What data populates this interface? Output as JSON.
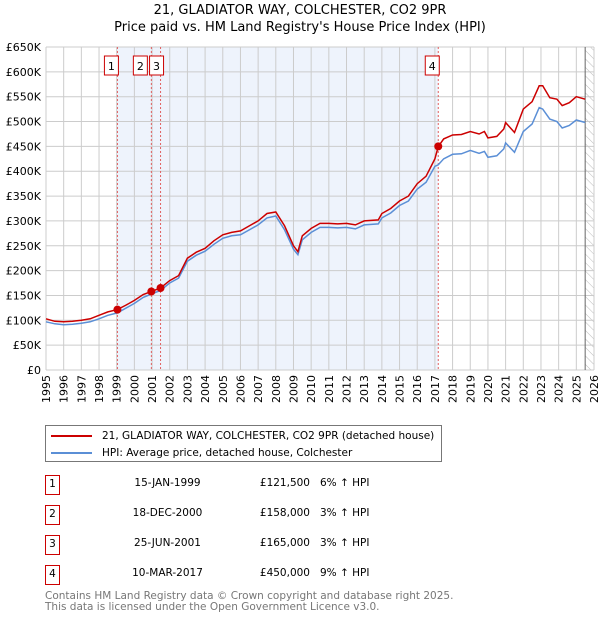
{
  "chart_data": {
    "type": "line",
    "title": "21, GLADIATOR WAY, COLCHESTER, CO2 9PR",
    "subtitle": "Price paid vs. HM Land Registry's House Price Index (HPI)",
    "xlim": [
      1995,
      2026
    ],
    "ylim": [
      0,
      650000
    ],
    "grid": true,
    "x_ticks": [
      "1995",
      "1996",
      "1997",
      "1998",
      "1999",
      "2000",
      "2001",
      "2002",
      "2003",
      "2004",
      "2005",
      "2006",
      "2007",
      "2008",
      "2009",
      "2010",
      "2011",
      "2012",
      "2013",
      "2014",
      "2015",
      "2016",
      "2017",
      "2018",
      "2019",
      "2020",
      "2021",
      "2022",
      "2023",
      "2024",
      "2025",
      "2026"
    ],
    "y_ticks": [
      {
        "v": 0,
        "label": "£0"
      },
      {
        "v": 50000,
        "label": "£50K"
      },
      {
        "v": 100000,
        "label": "£100K"
      },
      {
        "v": 150000,
        "label": "£150K"
      },
      {
        "v": 200000,
        "label": "£200K"
      },
      {
        "v": 250000,
        "label": "£250K"
      },
      {
        "v": 300000,
        "label": "£300K"
      },
      {
        "v": 350000,
        "label": "£350K"
      },
      {
        "v": 400000,
        "label": "£400K"
      },
      {
        "v": 450000,
        "label": "£450K"
      },
      {
        "v": 500000,
        "label": "£500K"
      },
      {
        "v": 550000,
        "label": "£550K"
      },
      {
        "v": 600000,
        "label": "£600K"
      },
      {
        "v": 650000,
        "label": "£650K"
      }
    ],
    "shaded_range": [
      1999.04,
      2017.19
    ],
    "hatched_from": 2025.5,
    "series": [
      {
        "name": "21, GLADIATOR WAY, COLCHESTER, CO2 9PR (detached house)",
        "color": "#cc0000",
        "x": [
          1995,
          1995.5,
          1996,
          1996.5,
          1997,
          1997.5,
          1998,
          1998.5,
          1999.04,
          1999.5,
          2000,
          2000.5,
          2000.96,
          2001.48,
          2002,
          2002.5,
          2003,
          2003.5,
          2004,
          2004.5,
          2005,
          2005.5,
          2006,
          2006.5,
          2007,
          2007.5,
          2008,
          2008.5,
          2009,
          2009.25,
          2009.5,
          2010,
          2010.5,
          2011,
          2011.5,
          2012,
          2012.5,
          2013,
          2013.8,
          2014,
          2014.5,
          2015,
          2015.5,
          2016,
          2016.5,
          2017,
          2017.19,
          2017.5,
          2018,
          2018.5,
          2019,
          2019.5,
          2019.8,
          2020,
          2020.5,
          2020.9,
          2021,
          2021.5,
          2022,
          2022.5,
          2022.9,
          2023.1,
          2023.5,
          2023.9,
          2024.2,
          2024.6,
          2025,
          2025.5
        ],
        "y": [
          103000,
          98000,
          97000,
          98000,
          100000,
          103000,
          110000,
          117000,
          121500,
          130000,
          140000,
          152000,
          158000,
          165000,
          180000,
          190000,
          225000,
          237000,
          245000,
          260000,
          272000,
          277000,
          280000,
          290000,
          300000,
          315000,
          318000,
          290000,
          250000,
          238000,
          270000,
          285000,
          295000,
          295000,
          294000,
          295000,
          292000,
          300000,
          302000,
          315000,
          325000,
          340000,
          350000,
          375000,
          390000,
          425000,
          450000,
          465000,
          473000,
          474000,
          480000,
          475000,
          480000,
          467000,
          470000,
          485000,
          498000,
          478000,
          525000,
          540000,
          572000,
          572000,
          548000,
          545000,
          532000,
          538000,
          550000,
          545000
        ]
      },
      {
        "name": "HPI: Average price, detached house, Colchester",
        "color": "#5b8fd6",
        "x": [
          1995,
          1995.5,
          1996,
          1996.5,
          1997,
          1997.5,
          1998,
          1998.5,
          1999.04,
          1999.5,
          2000,
          2000.5,
          2000.96,
          2001.48,
          2002,
          2002.5,
          2003,
          2003.5,
          2004,
          2004.5,
          2005,
          2005.5,
          2006,
          2006.5,
          2007,
          2007.5,
          2008,
          2008.5,
          2009,
          2009.25,
          2009.5,
          2010,
          2010.5,
          2011,
          2011.5,
          2012,
          2012.5,
          2013,
          2013.8,
          2014,
          2014.5,
          2015,
          2015.5,
          2016,
          2016.5,
          2017,
          2017.19,
          2017.5,
          2018,
          2018.5,
          2019,
          2019.5,
          2019.8,
          2020,
          2020.5,
          2020.9,
          2021,
          2021.5,
          2022,
          2022.5,
          2022.9,
          2023.1,
          2023.5,
          2023.9,
          2024.2,
          2024.6,
          2025,
          2025.5
        ],
        "y": [
          97000,
          93000,
          91000,
          92000,
          94000,
          97000,
          103000,
          110000,
          115000,
          124000,
          134000,
          146000,
          153000,
          160000,
          175000,
          185000,
          219000,
          231000,
          239000,
          253000,
          265000,
          270000,
          272000,
          282000,
          292000,
          306000,
          310000,
          282000,
          243000,
          232000,
          262000,
          277000,
          287000,
          287000,
          286000,
          287000,
          284000,
          292000,
          294000,
          306000,
          316000,
          331000,
          340000,
          364000,
          378000,
          410000,
          413000,
          425000,
          434000,
          435000,
          442000,
          436000,
          440000,
          428000,
          431000,
          445000,
          457000,
          438000,
          480000,
          495000,
          528000,
          525000,
          505000,
          500000,
          487000,
          492000,
          503000,
          498000
        ]
      }
    ],
    "sales": [
      {
        "n": "1",
        "x": 1999.04,
        "y": 121500
      },
      {
        "n": "2",
        "x": 2000.96,
        "y": 158000
      },
      {
        "n": "3",
        "x": 2001.48,
        "y": 165000
      },
      {
        "n": "4",
        "x": 2017.19,
        "y": 450000
      }
    ]
  },
  "legend": {
    "red": "21, GLADIATOR WAY, COLCHESTER, CO2 9PR (detached house)",
    "blue": "HPI: Average price, detached house, Colchester"
  },
  "transactions": [
    {
      "n": "1",
      "date": "15-JAN-1999",
      "price": "£121,500",
      "hpi": "6% ↑ HPI"
    },
    {
      "n": "2",
      "date": "18-DEC-2000",
      "price": "£158,000",
      "hpi": "3% ↑ HPI"
    },
    {
      "n": "3",
      "date": "25-JUN-2001",
      "price": "£165,000",
      "hpi": "3% ↑ HPI"
    },
    {
      "n": "4",
      "date": "10-MAR-2017",
      "price": "£450,000",
      "hpi": "9% ↑ HPI"
    }
  ],
  "footer": {
    "line1": "Contains HM Land Registry data © Crown copyright and database right 2025.",
    "line2": "This data is licensed under the Open Government Licence v3.0."
  }
}
